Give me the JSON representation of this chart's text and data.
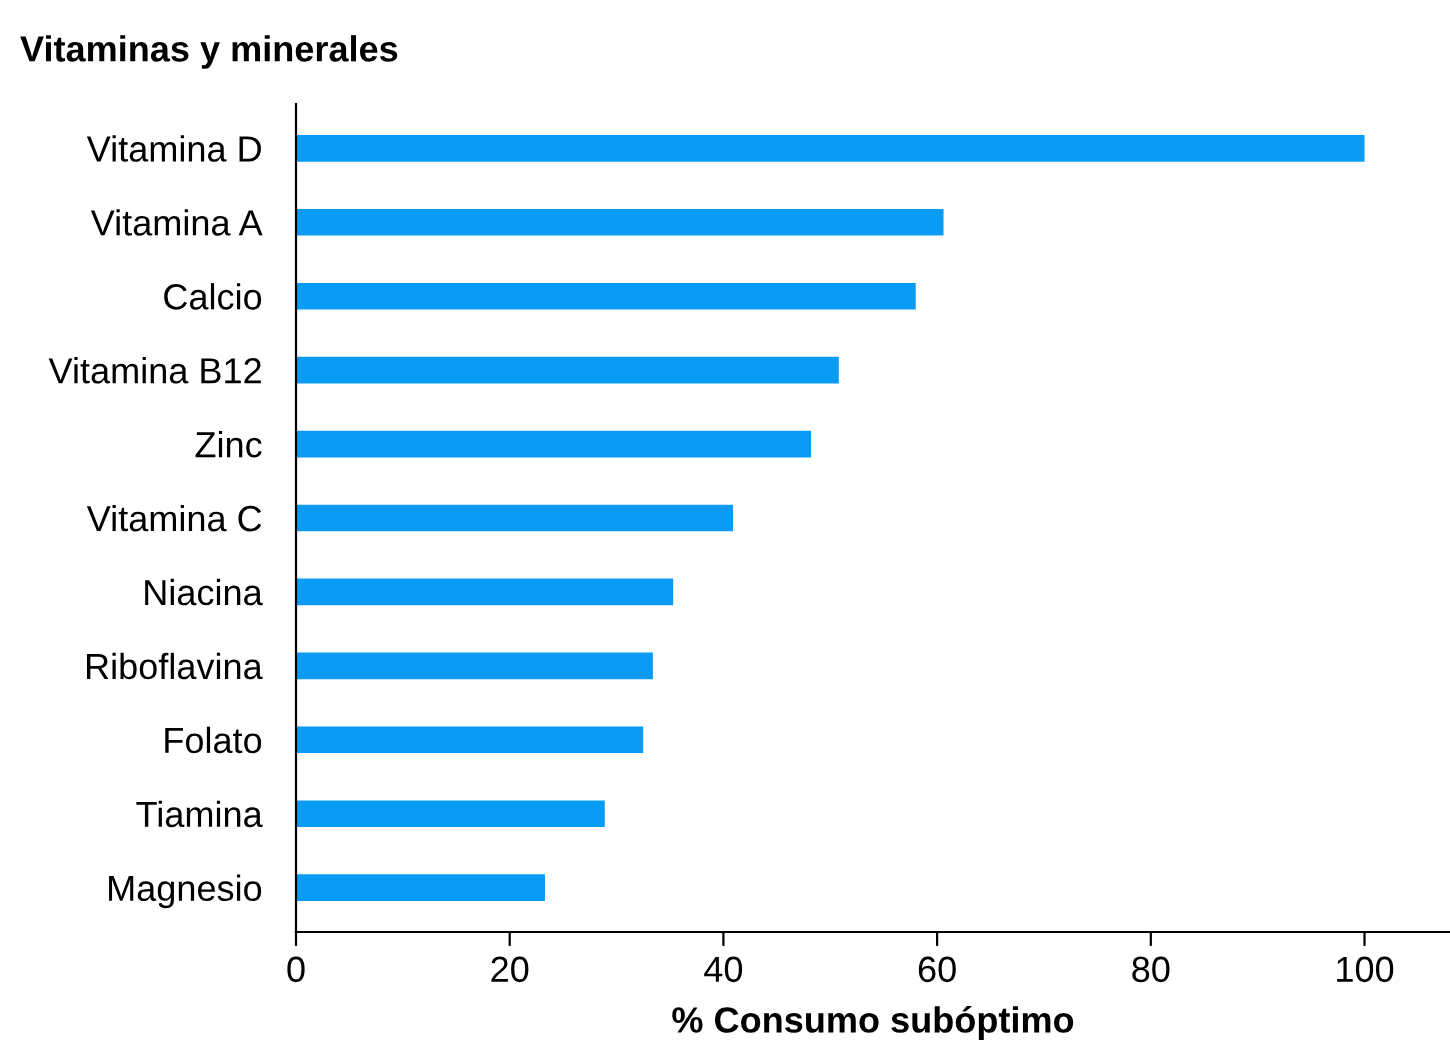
{
  "chart_data": {
    "type": "bar",
    "orientation": "horizontal",
    "title": "Vitaminas y minerales",
    "xlabel": "% Consumo subóptimo",
    "categories": [
      "Vitamina D",
      "Vitamina A",
      "Calcio",
      "Vitamina B12",
      "Zinc",
      "Vitamina C",
      "Niacina",
      "Riboflavina",
      "Folato",
      "Tiamina",
      "Magnesio"
    ],
    "values": [
      100,
      60.6,
      58,
      50.8,
      48.2,
      40.9,
      35.3,
      33.4,
      32.5,
      28.9,
      23.3
    ],
    "color": "#0a9cf5",
    "xlim": [
      0,
      108
    ],
    "xticks": [
      0,
      20,
      40,
      60,
      80,
      100
    ],
    "grid": false,
    "legend": false
  }
}
